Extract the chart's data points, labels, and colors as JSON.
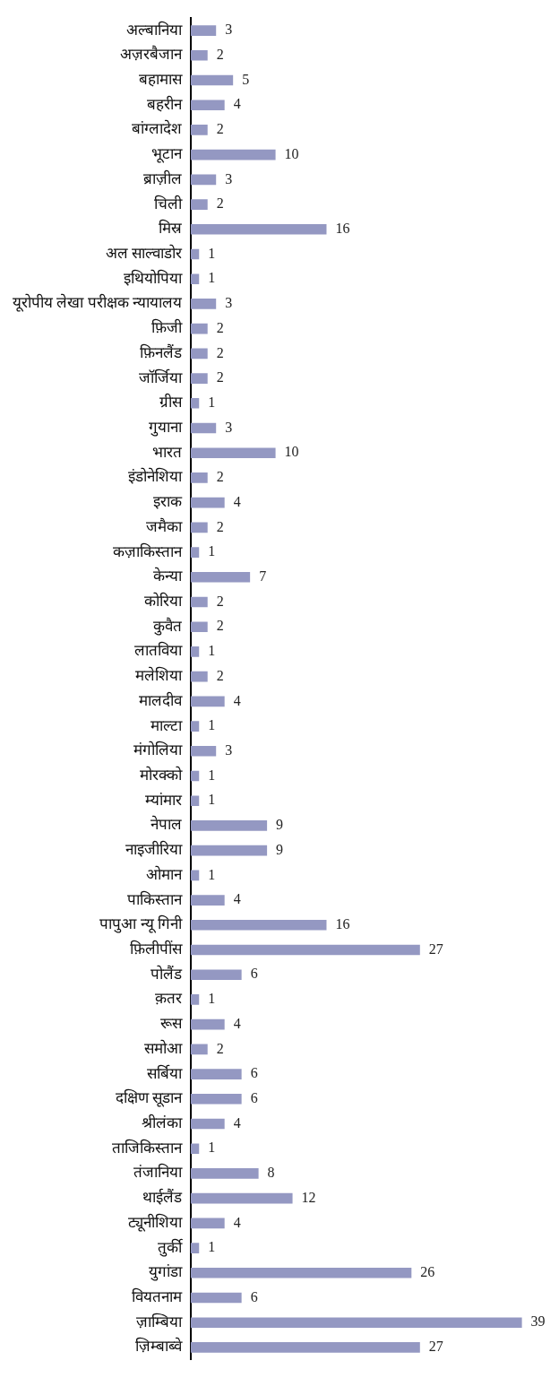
{
  "chart_data": {
    "type": "bar",
    "orientation": "horizontal",
    "data_labels": true,
    "legend": false,
    "color": "#9498c2",
    "categories": [
      "अल्बानिया",
      "अज़रबैजान",
      "बहामास",
      "बहरीन",
      "बांग्लादेश",
      "भूटान",
      "ब्राज़ील",
      "चिली",
      "मिस्र",
      "अल साल्वाडोर",
      "इथियोपिया",
      "यूरोपीय लेखा परीक्षक न्यायालय",
      "फ़िजी",
      "फ़िनलैंड",
      "जॉर्जिया",
      "ग्रीस",
      "गुयाना",
      "भारत",
      "इंडोनेशिया",
      "इराक",
      "जमैका",
      "कज़ाकिस्तान",
      "केन्या",
      "कोरिया",
      "कुवैत",
      "लातविया",
      "मलेशिया",
      "मालदीव",
      "माल्टा",
      "मंगोलिया",
      "मोरक्को",
      "म्यांमार",
      "नेपाल",
      "नाइजीरिया",
      "ओमान",
      "पाकिस्तान",
      "पापुआ न्यू गिनी",
      "फ़िलीपींस",
      "पोलैंड",
      "क़तर",
      "रूस",
      "समोआ",
      "सर्बिया",
      "दक्षिण सूडान",
      "श्रीलंका",
      "ताजिकिस्तान",
      "तंजानिया",
      "थाईलैंड",
      "ट्यूनीशिया",
      "तुर्की",
      "युगांडा",
      "वियतनाम",
      "ज़ाम्बिया",
      "ज़िम्बाब्वे"
    ],
    "values": [
      3,
      2,
      5,
      4,
      2,
      10,
      3,
      2,
      16,
      1,
      1,
      3,
      2,
      2,
      2,
      1,
      3,
      10,
      2,
      4,
      2,
      1,
      7,
      2,
      2,
      1,
      2,
      4,
      1,
      3,
      1,
      1,
      9,
      9,
      1,
      4,
      16,
      27,
      6,
      1,
      4,
      2,
      6,
      6,
      4,
      1,
      8,
      12,
      4,
      1,
      26,
      6,
      39,
      27
    ]
  }
}
